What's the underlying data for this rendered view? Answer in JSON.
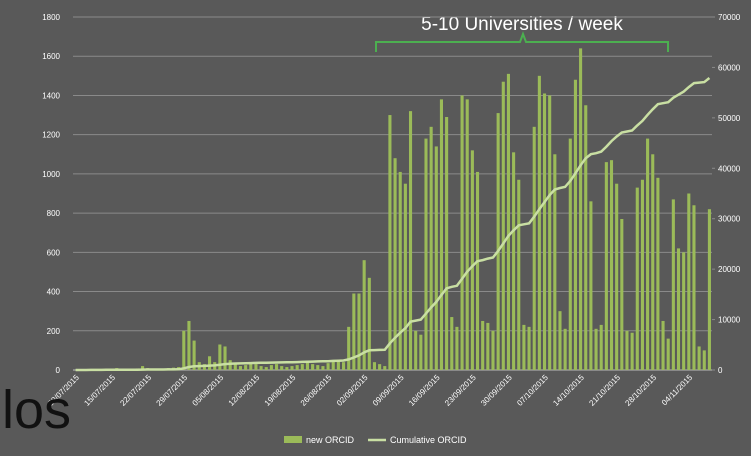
{
  "chart_data": {
    "type": "bar",
    "annotations": [
      "5-10 Universities / week",
      "los"
    ],
    "categories": [
      "08/07/2015",
      null,
      null,
      null,
      null,
      null,
      null,
      "15/07/2015",
      null,
      null,
      null,
      null,
      null,
      null,
      "22/07/2015",
      null,
      null,
      null,
      null,
      null,
      null,
      "29/07/2015",
      null,
      null,
      null,
      null,
      null,
      null,
      "05/08/2015",
      null,
      null,
      null,
      null,
      null,
      null,
      "12/08/2015",
      null,
      null,
      null,
      null,
      null,
      null,
      "19/08/2015",
      null,
      null,
      null,
      null,
      null,
      null,
      "26/08/2015",
      null,
      null,
      null,
      null,
      null,
      null,
      "02/09/2015",
      null,
      null,
      null,
      null,
      null,
      null,
      "09/09/2015",
      null,
      null,
      null,
      null,
      null,
      null,
      "16/09/2015",
      null,
      null,
      null,
      null,
      null,
      null,
      "23/09/2015",
      null,
      null,
      null,
      null,
      null,
      null,
      "30/09/2015",
      null,
      null,
      null,
      null,
      null,
      null,
      "07/10/2015",
      null,
      null,
      null,
      null,
      null,
      null,
      "14/10/2015",
      null,
      null,
      null,
      null,
      null,
      null,
      "21/10/2015",
      null,
      null,
      null,
      null,
      null,
      null,
      "28/10/2015",
      null,
      null,
      null,
      null,
      null,
      null,
      "04/11/2015",
      null,
      null,
      null,
      null
    ],
    "series": [
      {
        "name": "new ORCID",
        "type": "bar",
        "color": "#9bbb59",
        "values": [
          0,
          0,
          2,
          3,
          5,
          3,
          2,
          4,
          10,
          5,
          3,
          2,
          8,
          20,
          10,
          5,
          4,
          3,
          10,
          12,
          15,
          200,
          250,
          150,
          40,
          30,
          70,
          40,
          130,
          120,
          50,
          30,
          20,
          25,
          40,
          30,
          20,
          15,
          25,
          30,
          20,
          15,
          20,
          25,
          30,
          40,
          30,
          25,
          20,
          35,
          45,
          50,
          40,
          220,
          390,
          390,
          560,
          470,
          40,
          30,
          20,
          1300,
          1080,
          1010,
          950,
          1320,
          200,
          180,
          1180,
          1240,
          1140,
          1380,
          1290,
          270,
          220,
          1400,
          1380,
          1120,
          1010,
          250,
          240,
          200,
          1310,
          1470,
          1510,
          1110,
          970,
          230,
          220,
          1240,
          1500,
          1410,
          1400,
          1100,
          300,
          210,
          1180,
          1480,
          1640,
          1350,
          860,
          210,
          230,
          1060,
          1070,
          950,
          770,
          200,
          190,
          930,
          970,
          1180,
          1100,
          980,
          250,
          160,
          870,
          620,
          600,
          900,
          840,
          120,
          100,
          820
        ]
      },
      {
        "name": "Cumulative ORCID",
        "type": "line",
        "axis": "y2",
        "color": "#c9dfa3",
        "values": [
          0,
          0,
          0,
          10,
          20,
          20,
          30,
          30,
          40,
          50,
          50,
          50,
          60,
          80,
          90,
          100,
          100,
          100,
          110,
          120,
          140,
          340,
          590,
          740,
          780,
          810,
          880,
          920,
          1050,
          1170,
          1220,
          1280,
          1300,
          1330,
          1370,
          1400,
          1420,
          1440,
          1460,
          1490,
          1510,
          1530,
          1550,
          1570,
          1600,
          1640,
          1670,
          1700,
          1720,
          1750,
          1800,
          1850,
          1890,
          2100,
          2500,
          2900,
          3500,
          3900,
          3950,
          3980,
          4000,
          5300,
          6400,
          7400,
          8300,
          9600,
          9800,
          10000,
          11200,
          12400,
          13500,
          14900,
          16200,
          16500,
          16700,
          18100,
          19500,
          20600,
          21600,
          21800,
          22100,
          22300,
          23600,
          25100,
          26600,
          27700,
          28700,
          28900,
          29100,
          30400,
          31900,
          33300,
          34700,
          35800,
          36100,
          36300,
          37500,
          39000,
          40600,
          42000,
          42800,
          43000,
          43300,
          44300,
          45400,
          46300,
          47100,
          47300,
          47500,
          48500,
          49400,
          50600,
          51700,
          52700,
          52900,
          53100,
          54000,
          54600,
          55200,
          56100,
          56900,
          57000,
          57100,
          57900
        ]
      }
    ],
    "ylim": [
      0,
      1800
    ],
    "yticks": [
      0,
      200,
      400,
      600,
      800,
      1000,
      1200,
      1400,
      1600,
      1800
    ],
    "y2lim": [
      0,
      70000
    ],
    "y2ticks": [
      0,
      10000,
      20000,
      30000,
      40000,
      50000,
      60000,
      70000
    ],
    "grid": true,
    "legend": "bottom"
  }
}
